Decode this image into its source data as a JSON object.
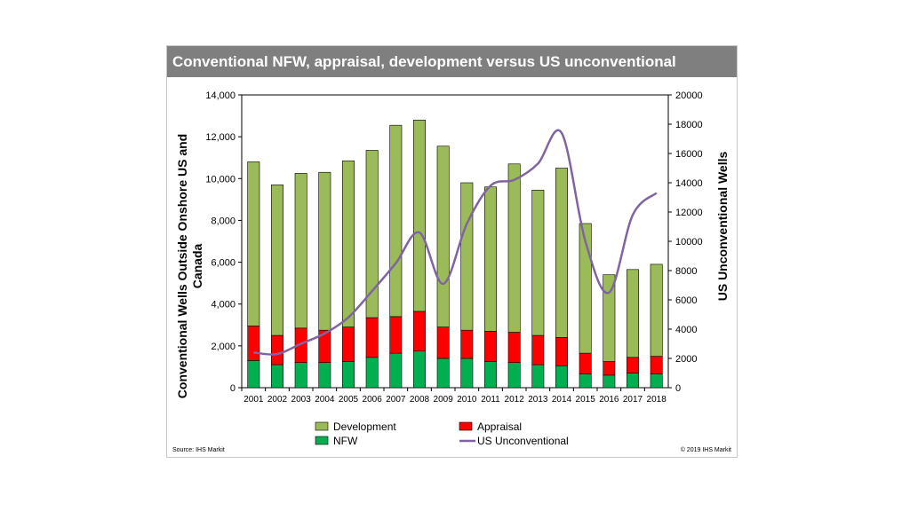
{
  "title": "Conventional NFW, appraisal, development versus US unconventional",
  "source": "Source: IHS Markit",
  "copyright": "© 2019 IHS Markit",
  "colors": {
    "development": "#9bbb59",
    "appraisal": "#ff0000",
    "nfw": "#00b050",
    "unconventional": "#8064a2",
    "title_bg": "#7f7f7f"
  },
  "chart_data": {
    "type": "bar",
    "stacked": true,
    "categories": [
      "2001",
      "2002",
      "2003",
      "2004",
      "2005",
      "2006",
      "2007",
      "2008",
      "2009",
      "2010",
      "2011",
      "2012",
      "2013",
      "2014",
      "2015",
      "2016",
      "2017",
      "2018"
    ],
    "series": [
      {
        "name": "NFW",
        "axis": "left",
        "values": [
          1300,
          1100,
          1200,
          1200,
          1250,
          1450,
          1650,
          1750,
          1400,
          1400,
          1250,
          1200,
          1100,
          1050,
          650,
          600,
          700,
          650
        ]
      },
      {
        "name": "Appraisal",
        "axis": "left",
        "values": [
          1650,
          1400,
          1650,
          1550,
          1650,
          1900,
          1750,
          1900,
          1500,
          1350,
          1450,
          1450,
          1400,
          1350,
          1000,
          650,
          750,
          850
        ]
      },
      {
        "name": "Development",
        "axis": "left",
        "values": [
          7850,
          7200,
          7400,
          7550,
          7950,
          8000,
          9150,
          9150,
          8650,
          7050,
          6900,
          8050,
          6950,
          8100,
          6200,
          4150,
          4200,
          4400
        ]
      },
      {
        "name": "US Unconventional",
        "type": "line",
        "axis": "right",
        "values": [
          2400,
          2300,
          3000,
          3700,
          4800,
          6600,
          8500,
          10600,
          7100,
          11200,
          13800,
          14200,
          15300,
          17400,
          10000,
          6500,
          11800,
          13300
        ]
      }
    ],
    "y_left": {
      "label": "Conventional Wells Outside Onshore US and Canada",
      "min": 0,
      "max": 14000,
      "ticks": [
        "0",
        "2,000",
        "4,000",
        "6,000",
        "8,000",
        "10,000",
        "12,000",
        "14,000"
      ]
    },
    "y_right": {
      "label": "US Unconventional Wells",
      "min": 0,
      "max": 20000,
      "ticks": [
        "0",
        "2000",
        "4000",
        "6000",
        "8000",
        "10000",
        "12000",
        "14000",
        "16000",
        "18000",
        "20000"
      ]
    },
    "legend": [
      {
        "name": "Development",
        "kind": "box",
        "colorKey": "development"
      },
      {
        "name": "Appraisal",
        "kind": "box",
        "colorKey": "appraisal"
      },
      {
        "name": "NFW",
        "kind": "box",
        "colorKey": "nfw"
      },
      {
        "name": "US Unconventional",
        "kind": "line",
        "colorKey": "unconventional"
      }
    ],
    "legend_position": "bottom"
  }
}
